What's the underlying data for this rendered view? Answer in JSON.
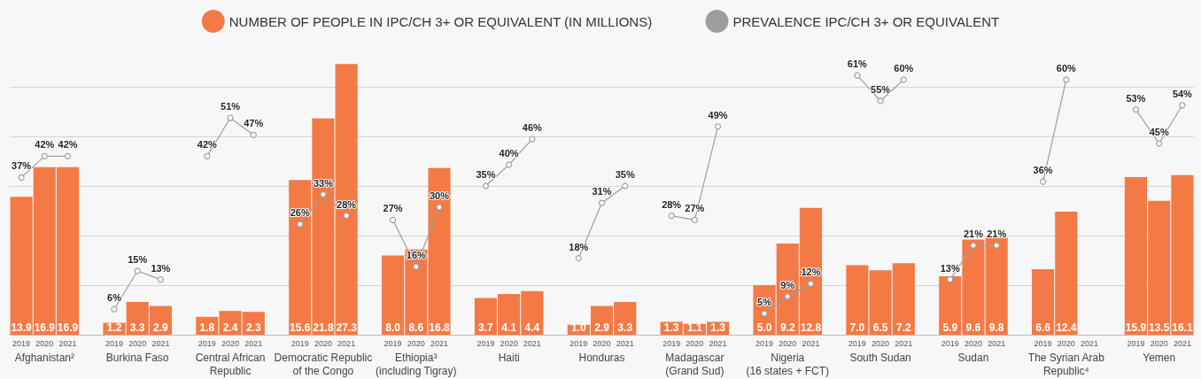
{
  "chart_data": {
    "type": "bar",
    "categories": [
      "2019",
      "2020",
      "2021",
      null,
      "2019",
      "2020",
      "2021",
      null,
      "2019",
      "2020",
      "2021",
      null,
      "2019",
      "2020",
      "2021",
      null,
      "2019",
      "2020",
      "2021",
      null,
      "2019",
      "2020",
      "2021",
      null,
      "2019",
      "2020",
      "2021",
      null,
      "2019",
      "2020",
      "2021",
      null,
      "2019",
      "2020",
      "2021",
      null,
      "2019",
      "2020",
      "2021",
      null,
      "2019",
      "2020",
      "2021",
      null,
      "2019",
      "2020",
      "2021",
      null,
      "2019",
      "2020",
      "2021"
    ],
    "series": [
      {
        "name": "NUMBER OF PEOPLE IN IPC/CH 3+ OR EQUIVALENT (IN MILLIONS)",
        "color": "#f47a45",
        "values": [
          13.9,
          16.9,
          16.9,
          null,
          1.2,
          3.3,
          2.9,
          null,
          1.8,
          2.4,
          2.3,
          null,
          15.6,
          21.8,
          27.3,
          null,
          8.0,
          8.6,
          16.8,
          null,
          3.7,
          4.1,
          4.4,
          null,
          1.0,
          2.9,
          3.3,
          null,
          1.3,
          1.1,
          1.3,
          null,
          5.0,
          9.2,
          12.8,
          null,
          7.0,
          6.5,
          7.2,
          null,
          5.9,
          9.6,
          9.8,
          null,
          6.6,
          12.4,
          null,
          null,
          15.9,
          13.5,
          16.1
        ],
        "value_labels": [
          "13.9",
          "16.9",
          "16.9",
          null,
          "1.2",
          "3.3",
          "2.9",
          null,
          "1.8",
          "2.4",
          "2.3",
          null,
          "15.6",
          "21.8",
          "27.3",
          null,
          "8.0",
          "8.6",
          "16.8",
          null,
          "3.7",
          "4.1",
          "4.4",
          null,
          "1.0",
          "2.9",
          "3.3",
          null,
          "1.3",
          "1.1",
          "1.3",
          null,
          "5.0",
          "9.2",
          "12.8",
          null,
          "7.0",
          "6.5",
          "7.2",
          null,
          "5.9",
          "9.6",
          "9.8",
          null,
          "6.6",
          "12.4",
          null,
          null,
          "15.9",
          "13.5",
          "16.1"
        ]
      },
      {
        "name": "PREVALENCE IPC/CH 3+ OR EQUIVALENT",
        "type": "line",
        "axis": "y2",
        "color": "#9e9e9e",
        "values": [
          37,
          42,
          42,
          null,
          6,
          15,
          13,
          null,
          42,
          51,
          47,
          null,
          26,
          33,
          28,
          null,
          27,
          16,
          30,
          null,
          35,
          40,
          46,
          null,
          18,
          31,
          35,
          null,
          28,
          27,
          49,
          null,
          5,
          9,
          12,
          null,
          61,
          55,
          60,
          null,
          13,
          21,
          21,
          null,
          36,
          60,
          null,
          null,
          53,
          45,
          54
        ],
        "value_labels": [
          "37%",
          "42%",
          "42%",
          null,
          "6%",
          "15%",
          "13%",
          null,
          "42%",
          "51%",
          "47%",
          null,
          "26%",
          "33%",
          "28%",
          null,
          "27%",
          "16%",
          "30%",
          null,
          "35%",
          "40%",
          "46%",
          null,
          "18%",
          "31%",
          "35%",
          null,
          "28%",
          "27%",
          "49%",
          null,
          "5%",
          "9%",
          "12%",
          null,
          "61%",
          "55%",
          "60%",
          null,
          "13%",
          "21%",
          "21%",
          null,
          "36%",
          "60%",
          null,
          null,
          "53%",
          "45%",
          "54%"
        ]
      }
    ],
    "annotations": [
      "Afghanistan²",
      "Burkina Faso",
      "Central African\nRepublic",
      "Democratic Republic\nof the Congo",
      "Ethiopia³\n(including Tigray)",
      "Haiti",
      "Honduras",
      "Madagascar\n(Grand Sud)",
      "Nigeria\n(16 states + FCT)",
      "South Sudan",
      "Sudan",
      "The Syrian Arab\nRepublic⁴",
      "Yemen"
    ],
    "yticks": [
      {
        "value": 0,
        "label": null
      },
      {
        "value": 5,
        "label": null
      },
      {
        "value": 10,
        "label": null
      },
      {
        "value": 15,
        "label": null
      },
      {
        "value": 20,
        "label": null
      },
      {
        "value": 25,
        "label": null
      }
    ],
    "grid": "y",
    "legend": "top",
    "marker": "circle",
    "line_style": "solid"
  }
}
